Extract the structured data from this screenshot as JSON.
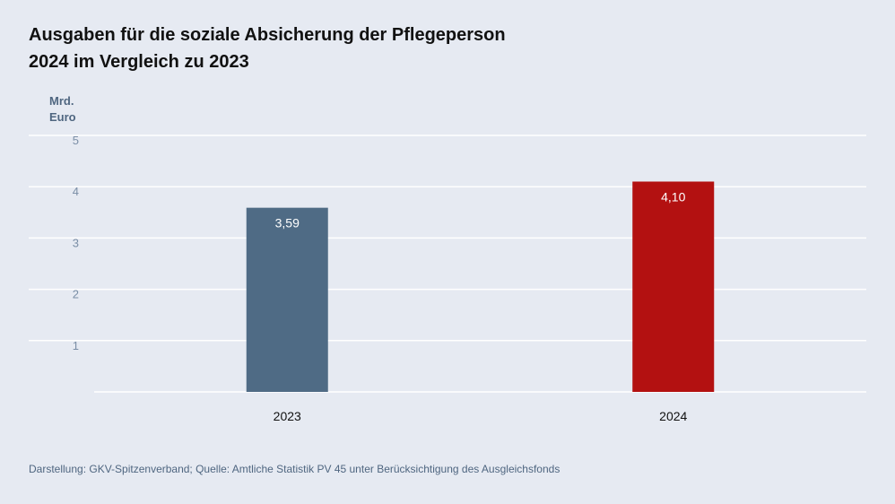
{
  "chart_data": {
    "type": "bar",
    "title_line1": "Ausgaben für die soziale Absicherung der Pflegeperson",
    "title_line2": "2024 im Vergleich zu 2023",
    "ylabel_line1": "Mrd.",
    "ylabel_line2": "Euro",
    "categories": [
      "2023",
      "2024"
    ],
    "values": [
      3.59,
      4.1
    ],
    "value_labels": [
      "3,59",
      "4,10"
    ],
    "bar_colors": [
      "#4f6b85",
      "#b31111"
    ],
    "ylim": [
      0,
      5
    ],
    "yticks": [
      1,
      2,
      3,
      4,
      5
    ],
    "grid": true,
    "source": "Darstellung: GKV-Spitzenverband; Quelle: Amtliche Statistik PV 45 unter Berücksichtigung des Ausgleichsfonds"
  },
  "colors": {
    "background": "#e6eaf2",
    "gridline": "#ffffff"
  }
}
